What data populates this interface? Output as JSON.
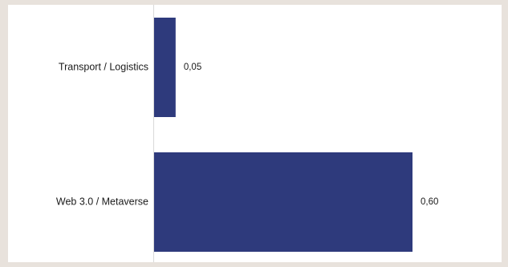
{
  "chart_data": {
    "type": "bar",
    "orientation": "horizontal",
    "categories": [
      "Transport / Logistics",
      "Web 3.0 / Metaverse"
    ],
    "values": [
      0.05,
      0.6
    ],
    "value_labels": [
      "0,05",
      "0,60"
    ],
    "xlim": [
      0,
      0.6
    ],
    "grid": false,
    "legend": "none",
    "title": "",
    "xlabel": "",
    "ylabel": "",
    "bar_color": "#2e3a7c"
  }
}
